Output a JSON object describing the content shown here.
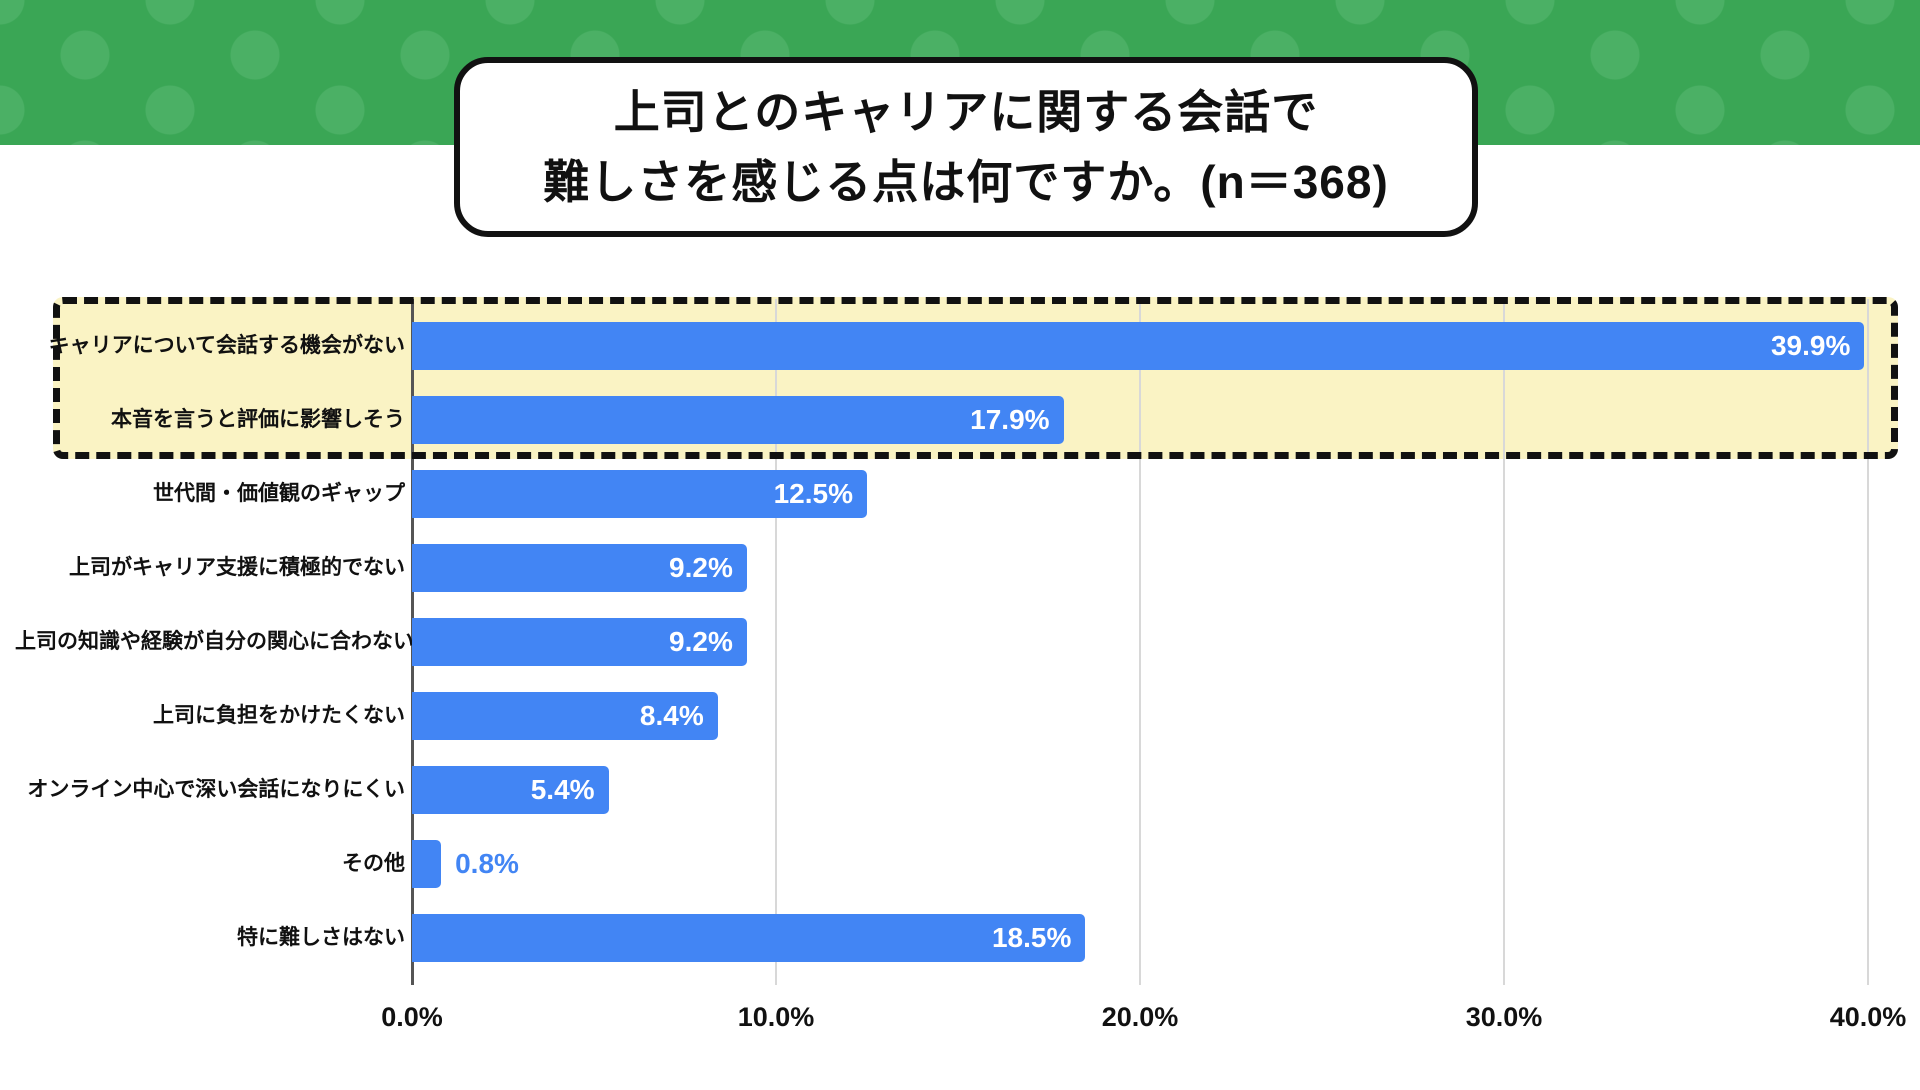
{
  "header": {
    "band_color": "#3aa655",
    "dot_color": "#4bb065"
  },
  "title": {
    "lines": [
      "上司とのキャリアに関する会話で",
      "難しさを感じる点は何ですか。(n＝368)"
    ]
  },
  "chart_data": {
    "type": "bar",
    "orientation": "horizontal",
    "title": "上司とのキャリアに関する会話で難しさを感じる点は何ですか。(n＝368)",
    "n_label": "n＝368",
    "categories": [
      "キャリアについて会話する機会がない",
      "本音を言うと評価に影響しそう",
      "世代間・価値観のギャップ",
      "上司がキャリア支援に積極的でない",
      "上司の知識や経験が自分の関心に合わない",
      "上司に負担をかけたくない",
      "オンライン中心で深い会話になりにくい",
      "その他",
      "特に難しさはない"
    ],
    "values": [
      39.9,
      17.9,
      12.5,
      9.2,
      9.2,
      8.4,
      5.4,
      0.8,
      18.5
    ],
    "value_labels": [
      "39.9%",
      "17.9%",
      "12.5%",
      "9.2%",
      "9.2%",
      "8.4%",
      "5.4%",
      "0.8%",
      "18.5%"
    ],
    "x_ticks": [
      "0.0%",
      "10.0%",
      "20.0%",
      "30.0%",
      "40.0%"
    ],
    "x_tick_values": [
      0,
      10,
      20,
      30,
      40
    ],
    "xlim": [
      0,
      40
    ],
    "grid": true,
    "legend": false,
    "highlight_rows": [
      0,
      1
    ],
    "highlighted_categories": [
      "キャリアについて会話する機会がない",
      "本音を言うと評価に影響しそう"
    ],
    "bar_color": "#4285f4",
    "highlight_bg_color": "#faf3c4",
    "value_label_inside_color": "#ffffff",
    "value_label_outside_color": "#4285f4",
    "outside_label_threshold": 2
  }
}
